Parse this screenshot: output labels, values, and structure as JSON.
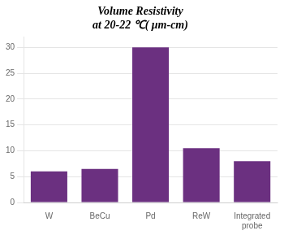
{
  "chart_data": {
    "type": "bar",
    "title": "Volume Resistivity\nat 20-22 ℃( μm-cm)",
    "categories": [
      "W",
      "BeCu",
      "Pd",
      "ReW",
      "Integrated\nprobe"
    ],
    "values": [
      6,
      6.5,
      30,
      10.5,
      8
    ],
    "color": "#6B3080",
    "ylim": [
      0,
      32
    ],
    "yticks": [
      0,
      5,
      10,
      15,
      20,
      25,
      30
    ],
    "grid": true
  }
}
